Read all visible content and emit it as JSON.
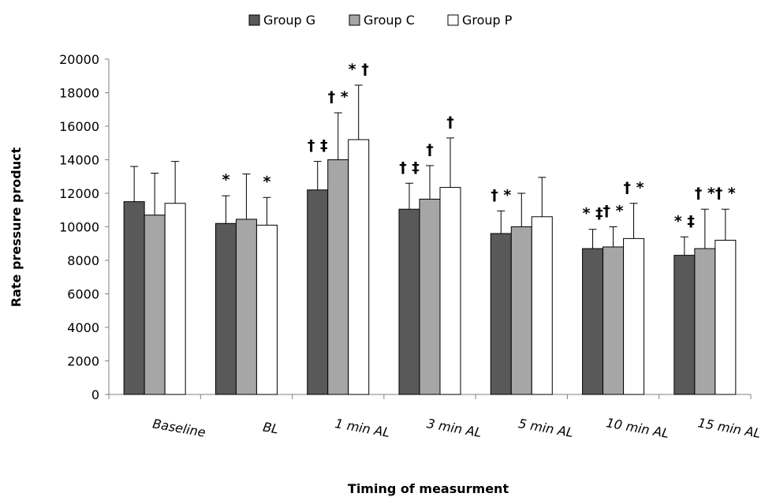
{
  "chart_data": {
    "type": "bar",
    "xlabel": "Timing of measurment",
    "ylabel": "Rate pressure product",
    "ylim": [
      0,
      20000
    ],
    "yticks": [
      0,
      2000,
      4000,
      6000,
      8000,
      10000,
      12000,
      14000,
      16000,
      18000,
      20000
    ],
    "categories": [
      "Baseline",
      "BL",
      "1 min AL",
      "3 min AL",
      "5 min AL",
      "10 min AL",
      "15 min AL"
    ],
    "legend_position": "top-center",
    "grid": false,
    "series": [
      {
        "name": "Group G",
        "color": "#595959",
        "values": [
          11500,
          10200,
          12200,
          11050,
          9600,
          8700,
          8300
        ],
        "error": [
          2100,
          1650,
          1700,
          1550,
          1350,
          1150,
          1100
        ],
        "annotations": [
          "",
          "*",
          "† ‡",
          "† ‡",
          "† *",
          "* ‡",
          "* ‡"
        ]
      },
      {
        "name": "Group C",
        "color": "#a6a6a6",
        "values": [
          10700,
          10450,
          14000,
          11650,
          10000,
          8800,
          8700
        ],
        "error": [
          2500,
          2700,
          2800,
          2000,
          2000,
          1200,
          2350
        ],
        "annotations": [
          "",
          "",
          "† *",
          "†",
          "",
          "† *",
          "† *"
        ]
      },
      {
        "name": "Group P",
        "color": "#ffffff",
        "values": [
          11400,
          10100,
          15200,
          12350,
          10600,
          9300,
          9200
        ],
        "error": [
          2500,
          1650,
          3250,
          2950,
          2350,
          2100,
          1850
        ],
        "annotations": [
          "",
          "*",
          "* †",
          "†",
          "",
          "† *",
          "† *"
        ]
      }
    ]
  }
}
